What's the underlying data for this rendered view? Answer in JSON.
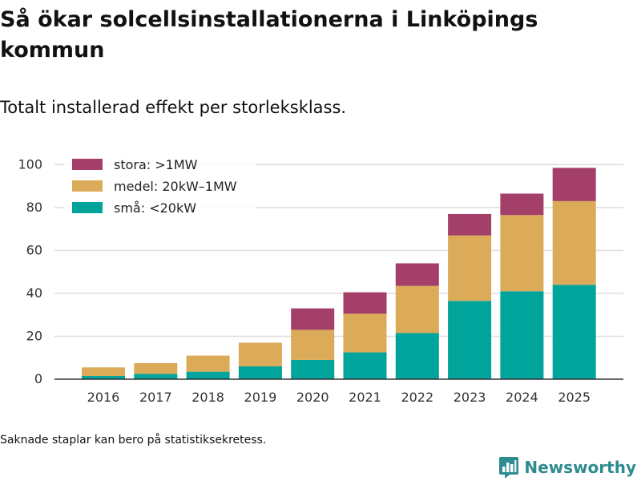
{
  "header": {
    "title": "Så ökar solcellsinstallationerna i Linköpings kommun",
    "subtitle": "Totalt installerad effekt per storleksklass."
  },
  "footer": {
    "note": "Saknade staplar kan bero på statistiksekretess.",
    "brand": "Newsworthy",
    "brand_icon": "bar-chart-icon"
  },
  "colors": {
    "sma": "#00a49a",
    "medel": "#dbab59",
    "stora": "#a33f68",
    "brand": "#2e8b8f"
  },
  "chart_data": {
    "type": "bar",
    "stacked": true,
    "categories": [
      "2016",
      "2017",
      "2018",
      "2019",
      "2020",
      "2021",
      "2022",
      "2023",
      "2024",
      "2025"
    ],
    "series": [
      {
        "key": "sma",
        "name": "små: <20kW",
        "values": [
          1.5,
          2.5,
          3.5,
          6,
          9,
          12.5,
          21.5,
          36.5,
          41,
          44
        ]
      },
      {
        "key": "medel",
        "name": "medel: 20kW–1MW",
        "values": [
          4,
          5,
          7.5,
          11,
          14,
          18,
          22,
          30.5,
          35.5,
          39
        ]
      },
      {
        "key": "stora",
        "name": "stora: >1MW",
        "values": [
          0,
          0,
          0,
          0,
          10,
          10,
          10.5,
          10,
          10,
          15.5
        ]
      }
    ],
    "legend_order": [
      "stora",
      "medel",
      "sma"
    ],
    "yticks": [
      0,
      20,
      40,
      60,
      80,
      100
    ],
    "ylim": [
      0,
      105
    ],
    "title": "Så ökar solcellsinstallationerna i Linköpings kommun",
    "xlabel": "",
    "ylabel": "",
    "grid": true,
    "legend_position": "top-left"
  }
}
